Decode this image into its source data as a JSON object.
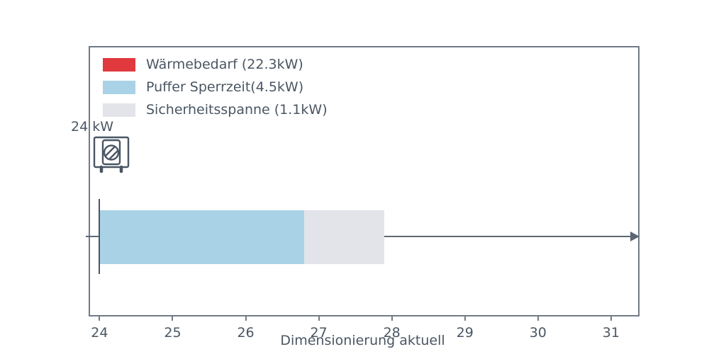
{
  "colors": {
    "text": "#4a5663",
    "border": "#707b87",
    "arrow": "#5d6673",
    "red": "#e0393e",
    "blue": "#a9d2e6",
    "gray": "#e2e4e9"
  },
  "capacity_marker": {
    "label": "24 kW",
    "value": 24
  },
  "chart_data": {
    "type": "bar",
    "orientation": "horizontal",
    "title": "",
    "xlabel": "Dimensionierung aktuell",
    "ylabel": "",
    "xlim": [
      23.87,
      31.37
    ],
    "xticks": [
      24,
      25,
      26,
      27,
      28,
      29,
      30,
      31
    ],
    "grid": false,
    "legend_position": "upper-left-inside",
    "bar_clip_min": 24,
    "series": [
      {
        "key": "waermebedarf",
        "name": "Wärmebedarf (22.3kW)",
        "value": 22.3,
        "from": 0,
        "to": 22.3,
        "color_key": "red"
      },
      {
        "key": "puffer-sperrzeit",
        "name": "Puffer Sperrzeit(4.5kW)",
        "value": 4.5,
        "from": 22.3,
        "to": 26.8,
        "color_key": "blue"
      },
      {
        "key": "sicherheitsspanne",
        "name": "Sicherheitsspanne (1.1kW)",
        "value": 1.1,
        "from": 26.8,
        "to": 27.9,
        "color_key": "gray"
      }
    ],
    "marker": {
      "value": 24,
      "label": "24 kW"
    }
  }
}
